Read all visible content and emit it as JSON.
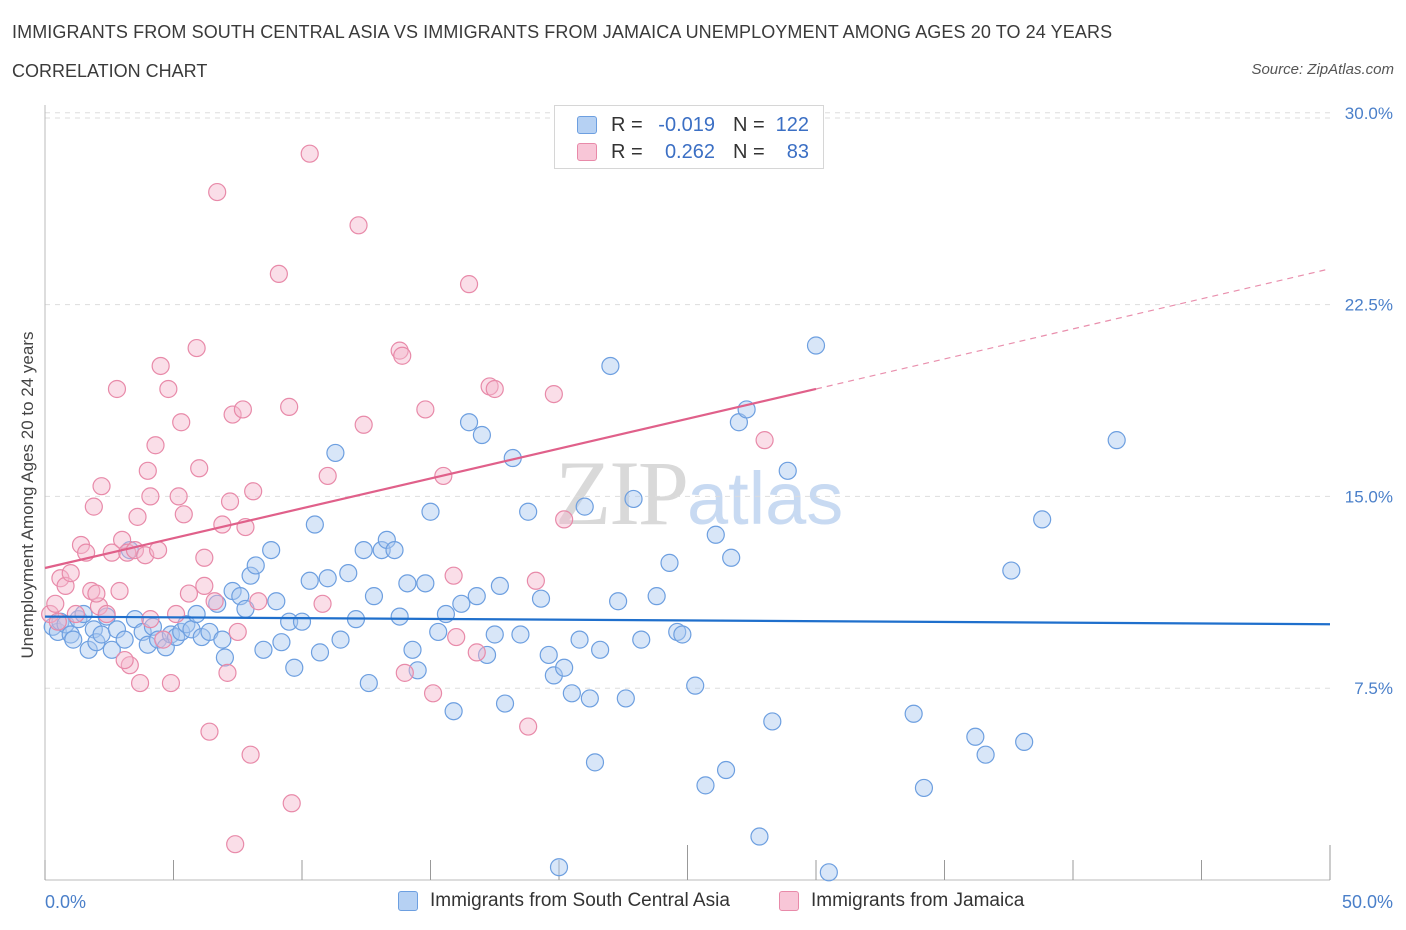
{
  "title": "IMMIGRANTS FROM SOUTH CENTRAL ASIA VS IMMIGRANTS FROM JAMAICA UNEMPLOYMENT AMONG AGES 20 TO 24 YEARS",
  "subtitle": "CORRELATION CHART",
  "source": "Source: ZipAtlas.com",
  "watermark": {
    "part1": "ZIP",
    "part2": "atlas"
  },
  "legend": {
    "r_label": "R =",
    "n_label": "N =",
    "series": [
      {
        "name": "Immigrants from South Central Asia",
        "r": "-0.019",
        "n": "122"
      },
      {
        "name": "Immigrants from Jamaica",
        "r": "0.262",
        "n": "83"
      }
    ]
  },
  "colors": {
    "blue_fill": "#a8c8f0",
    "blue_stroke": "#6d9fe0",
    "blue_line": "#1f6fcc",
    "pink_fill": "#f5b6cc",
    "pink_stroke": "#e88aa9",
    "pink_line": "#e0608a",
    "axis_text": "#4a7fc9",
    "grid": "#dddddd"
  },
  "chart_data": {
    "type": "scatter",
    "title": "IMMIGRANTS FROM SOUTH CENTRAL ASIA VS IMMIGRANTS FROM JAMAICA UNEMPLOYMENT AMONG AGES 20 TO 24 YEARS",
    "xlabel": "",
    "ylabel": "Unemployment Among Ages 20 to 24 years",
    "xlim": [
      0,
      50
    ],
    "ylim": [
      0,
      30.5
    ],
    "x_tick_labels": [
      "0.0%",
      "50.0%"
    ],
    "y_ticks": [
      7.5,
      15.0,
      22.5,
      30.0
    ],
    "y_tick_labels": [
      "7.5%",
      "15.0%",
      "22.5%",
      "30.0%"
    ],
    "grid": true,
    "series": [
      {
        "name": "Immigrants from South Central Asia",
        "color": "#6d9fe0",
        "trend": {
          "x": [
            0,
            50
          ],
          "y": [
            10.3,
            10.0
          ],
          "style": "solid"
        },
        "points": [
          [
            0.3,
            9.9
          ],
          [
            0.5,
            9.7
          ],
          [
            0.6,
            10.1
          ],
          [
            0.8,
            10.0
          ],
          [
            1.0,
            9.6
          ],
          [
            1.1,
            9.4
          ],
          [
            1.3,
            10.2
          ],
          [
            1.5,
            10.4
          ],
          [
            1.7,
            9.0
          ],
          [
            1.9,
            9.8
          ],
          [
            2.0,
            9.3
          ],
          [
            2.2,
            9.6
          ],
          [
            2.4,
            10.3
          ],
          [
            2.6,
            9.0
          ],
          [
            2.8,
            9.8
          ],
          [
            3.1,
            9.4
          ],
          [
            3.3,
            12.9
          ],
          [
            3.5,
            10.2
          ],
          [
            3.8,
            9.7
          ],
          [
            4.0,
            9.2
          ],
          [
            4.2,
            9.9
          ],
          [
            4.4,
            9.4
          ],
          [
            4.7,
            9.1
          ],
          [
            4.9,
            9.6
          ],
          [
            5.1,
            9.5
          ],
          [
            5.3,
            9.7
          ],
          [
            5.5,
            10.0
          ],
          [
            5.7,
            9.8
          ],
          [
            5.9,
            10.4
          ],
          [
            6.1,
            9.5
          ],
          [
            6.4,
            9.7
          ],
          [
            6.7,
            10.8
          ],
          [
            6.9,
            9.4
          ],
          [
            7.0,
            8.7
          ],
          [
            7.3,
            11.3
          ],
          [
            7.6,
            11.1
          ],
          [
            7.8,
            10.6
          ],
          [
            8.0,
            11.9
          ],
          [
            8.2,
            12.3
          ],
          [
            8.5,
            9.0
          ],
          [
            8.8,
            12.9
          ],
          [
            9.0,
            10.9
          ],
          [
            9.2,
            9.3
          ],
          [
            9.5,
            10.1
          ],
          [
            9.7,
            8.3
          ],
          [
            10.0,
            10.1
          ],
          [
            10.3,
            11.7
          ],
          [
            10.5,
            13.9
          ],
          [
            10.7,
            8.9
          ],
          [
            11.0,
            11.8
          ],
          [
            11.3,
            16.7
          ],
          [
            11.5,
            9.4
          ],
          [
            11.8,
            12.0
          ],
          [
            12.1,
            10.2
          ],
          [
            12.4,
            12.9
          ],
          [
            12.6,
            7.7
          ],
          [
            12.8,
            11.1
          ],
          [
            13.1,
            12.9
          ],
          [
            13.3,
            13.3
          ],
          [
            13.6,
            12.9
          ],
          [
            13.8,
            10.3
          ],
          [
            14.1,
            11.6
          ],
          [
            14.3,
            9.0
          ],
          [
            14.5,
            8.2
          ],
          [
            14.8,
            11.6
          ],
          [
            15.0,
            14.4
          ],
          [
            15.3,
            9.7
          ],
          [
            15.6,
            10.4
          ],
          [
            15.9,
            6.6
          ],
          [
            16.2,
            10.8
          ],
          [
            16.5,
            17.9
          ],
          [
            16.8,
            11.1
          ],
          [
            17.0,
            17.4
          ],
          [
            17.2,
            8.8
          ],
          [
            17.5,
            9.6
          ],
          [
            17.7,
            11.5
          ],
          [
            17.9,
            6.9
          ],
          [
            18.2,
            16.5
          ],
          [
            18.5,
            9.6
          ],
          [
            18.8,
            14.4
          ],
          [
            19.3,
            11.0
          ],
          [
            19.6,
            8.8
          ],
          [
            19.8,
            8.0
          ],
          [
            20.2,
            8.3
          ],
          [
            20.5,
            7.3
          ],
          [
            20.8,
            9.4
          ],
          [
            21.0,
            14.6
          ],
          [
            21.2,
            7.1
          ],
          [
            21.4,
            4.6
          ],
          [
            21.6,
            9.0
          ],
          [
            22.0,
            20.1
          ],
          [
            22.3,
            10.9
          ],
          [
            22.6,
            7.1
          ],
          [
            22.9,
            14.9
          ],
          [
            23.2,
            9.4
          ],
          [
            23.8,
            11.1
          ],
          [
            24.3,
            12.4
          ],
          [
            24.6,
            9.7
          ],
          [
            24.8,
            9.6
          ],
          [
            25.3,
            7.6
          ],
          [
            25.7,
            3.7
          ],
          [
            26.1,
            13.5
          ],
          [
            26.5,
            4.3
          ],
          [
            26.7,
            12.6
          ],
          [
            27.0,
            17.9
          ],
          [
            27.3,
            18.4
          ],
          [
            27.8,
            1.7
          ],
          [
            28.3,
            6.2
          ],
          [
            28.9,
            16.0
          ],
          [
            30.0,
            20.9
          ],
          [
            30.5,
            0.3
          ],
          [
            33.8,
            6.5
          ],
          [
            34.2,
            3.6
          ],
          [
            36.2,
            5.6
          ],
          [
            36.6,
            4.9
          ],
          [
            37.6,
            12.1
          ],
          [
            38.1,
            5.4
          ],
          [
            38.8,
            14.1
          ],
          [
            41.7,
            17.2
          ],
          [
            20.0,
            0.5
          ]
        ]
      },
      {
        "name": "Immigrants from Jamaica",
        "color": "#e88aa9",
        "trend": {
          "x": [
            0,
            30,
            50
          ],
          "y": [
            12.2,
            19.2,
            23.9
          ],
          "style": "solid-then-dashed"
        },
        "points": [
          [
            0.2,
            10.4
          ],
          [
            0.4,
            10.8
          ],
          [
            0.5,
            10.1
          ],
          [
            0.6,
            11.8
          ],
          [
            0.8,
            11.5
          ],
          [
            1.0,
            12.0
          ],
          [
            1.2,
            10.4
          ],
          [
            1.4,
            13.1
          ],
          [
            1.6,
            12.8
          ],
          [
            1.8,
            11.3
          ],
          [
            1.9,
            14.6
          ],
          [
            2.1,
            10.7
          ],
          [
            2.2,
            15.4
          ],
          [
            2.4,
            10.4
          ],
          [
            2.6,
            12.8
          ],
          [
            2.8,
            19.2
          ],
          [
            2.9,
            11.3
          ],
          [
            3.0,
            13.3
          ],
          [
            3.2,
            12.8
          ],
          [
            3.3,
            8.4
          ],
          [
            3.5,
            12.9
          ],
          [
            3.6,
            14.2
          ],
          [
            3.7,
            7.7
          ],
          [
            3.9,
            12.7
          ],
          [
            4.0,
            16.0
          ],
          [
            4.1,
            15.0
          ],
          [
            4.3,
            17.0
          ],
          [
            4.4,
            12.9
          ],
          [
            4.5,
            20.1
          ],
          [
            4.6,
            9.4
          ],
          [
            4.8,
            19.2
          ],
          [
            4.9,
            7.7
          ],
          [
            5.1,
            10.4
          ],
          [
            5.2,
            15.0
          ],
          [
            5.3,
            17.9
          ],
          [
            5.4,
            14.3
          ],
          [
            5.6,
            11.2
          ],
          [
            5.9,
            20.8
          ],
          [
            6.0,
            16.1
          ],
          [
            6.2,
            11.5
          ],
          [
            6.4,
            5.8
          ],
          [
            6.6,
            10.9
          ],
          [
            6.7,
            26.9
          ],
          [
            6.9,
            13.9
          ],
          [
            7.1,
            8.1
          ],
          [
            7.2,
            14.8
          ],
          [
            7.3,
            18.2
          ],
          [
            7.5,
            9.7
          ],
          [
            7.7,
            18.4
          ],
          [
            7.8,
            13.8
          ],
          [
            8.0,
            4.9
          ],
          [
            8.1,
            15.2
          ],
          [
            8.3,
            10.9
          ],
          [
            9.1,
            23.7
          ],
          [
            9.5,
            18.5
          ],
          [
            9.6,
            3.0
          ],
          [
            10.3,
            28.4
          ],
          [
            10.8,
            10.8
          ],
          [
            11.0,
            15.8
          ],
          [
            12.2,
            25.6
          ],
          [
            12.4,
            17.8
          ],
          [
            13.8,
            20.7
          ],
          [
            13.9,
            20.5
          ],
          [
            14.0,
            8.1
          ],
          [
            14.8,
            18.4
          ],
          [
            15.1,
            7.3
          ],
          [
            15.5,
            15.8
          ],
          [
            15.9,
            11.9
          ],
          [
            16.5,
            23.3
          ],
          [
            16.8,
            8.9
          ],
          [
            17.3,
            19.3
          ],
          [
            17.5,
            19.2
          ],
          [
            18.8,
            6.0
          ],
          [
            19.1,
            11.7
          ],
          [
            19.8,
            19.0
          ],
          [
            20.2,
            14.1
          ],
          [
            28.0,
            17.2
          ],
          [
            7.4,
            1.4
          ],
          [
            4.1,
            10.2
          ],
          [
            6.2,
            12.6
          ],
          [
            3.1,
            8.6
          ],
          [
            16.0,
            9.5
          ],
          [
            2.0,
            11.2
          ]
        ]
      }
    ]
  }
}
